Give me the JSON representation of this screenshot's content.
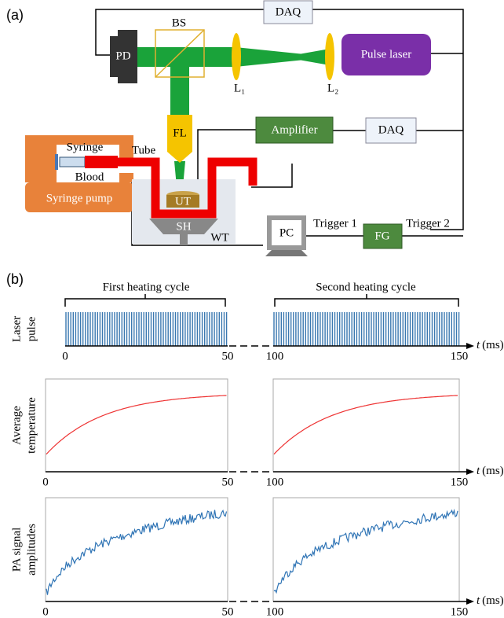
{
  "panel_a": {
    "label": "(a)",
    "daq_top": "DAQ",
    "bs": "BS",
    "pd": "PD",
    "lens_1": "L₁",
    "lens_2": "L₂",
    "pulse_laser": "Pulse laser",
    "fl": "FL",
    "amplifier": "Amplifier",
    "daq": "DAQ",
    "syringe": "Syringe",
    "tube": "Tube",
    "blood": "Blood",
    "ut": "UT",
    "syringe_pump": "Syringe pump",
    "sh": "SH",
    "wt": "WT",
    "pc": "PC",
    "trigger_1": "Trigger 1",
    "fg": "FG",
    "trigger_2": "Trigger 2"
  },
  "panel_b": {
    "label": "(b)",
    "cycles": [
      "First heating cycle",
      "Second heating cycle"
    ],
    "axis_label": {
      "symbol": "t",
      "unit": "(ms)"
    },
    "rows": [
      {
        "y_label": [
          "Laser",
          "pulse"
        ],
        "x_tick_labels": [
          "0",
          "50",
          "100",
          "150"
        ]
      },
      {
        "y_label": [
          "Average",
          "temperature"
        ],
        "x_tick_labels": [
          "0",
          "50",
          "100",
          "150"
        ]
      },
      {
        "y_label": [
          "PA signal",
          "amplitudes"
        ],
        "x_tick_labels": [
          "0",
          "50",
          "100",
          "150"
        ]
      }
    ]
  }
}
